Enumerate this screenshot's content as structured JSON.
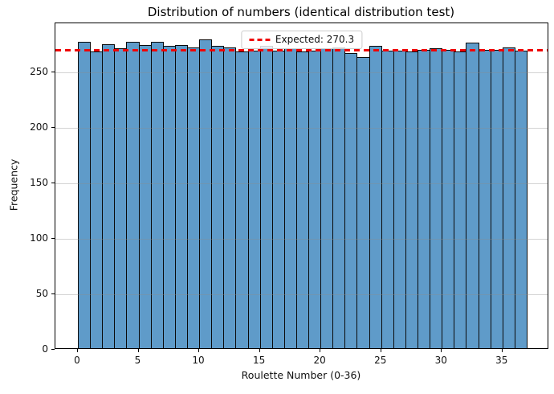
{
  "chart_data": {
    "type": "bar",
    "title": "Distribution of numbers (identical distribution test)",
    "xlabel": "Roulette Number (0-36)",
    "ylabel": "Frequency",
    "categories": [
      0,
      1,
      2,
      3,
      4,
      5,
      6,
      7,
      8,
      9,
      10,
      11,
      12,
      13,
      14,
      15,
      16,
      17,
      18,
      19,
      20,
      21,
      22,
      23,
      24,
      25,
      26,
      27,
      28,
      29,
      30,
      31,
      32,
      33,
      34,
      35,
      36
    ],
    "values": [
      276,
      267,
      274,
      270,
      276,
      273,
      276,
      272,
      273,
      271,
      278,
      272,
      271,
      267,
      268,
      272,
      268,
      270,
      267,
      268,
      270,
      271,
      266,
      262,
      272,
      268,
      268,
      267,
      269,
      270,
      269,
      267,
      275,
      269,
      269,
      271,
      268
    ],
    "expected_line": {
      "value": 270.3,
      "label": "Expected: 270.3",
      "color": "#ef0000",
      "style": "dashed"
    },
    "legend": {
      "position": "upper center",
      "entries": [
        "Expected: 270.3"
      ]
    },
    "xticks": [
      0,
      5,
      10,
      15,
      20,
      25,
      30,
      35
    ],
    "yticks": [
      0,
      50,
      100,
      150,
      200,
      250
    ],
    "xlim": [
      -1.85,
      38.85
    ],
    "ylim": [
      0,
      294
    ],
    "grid": "horizontal gridlines at y ticks, light gray, drawn over bars",
    "bar_fill": "#5f9bc9",
    "bar_edge": "#0a0a0a",
    "bin_width": 1
  }
}
